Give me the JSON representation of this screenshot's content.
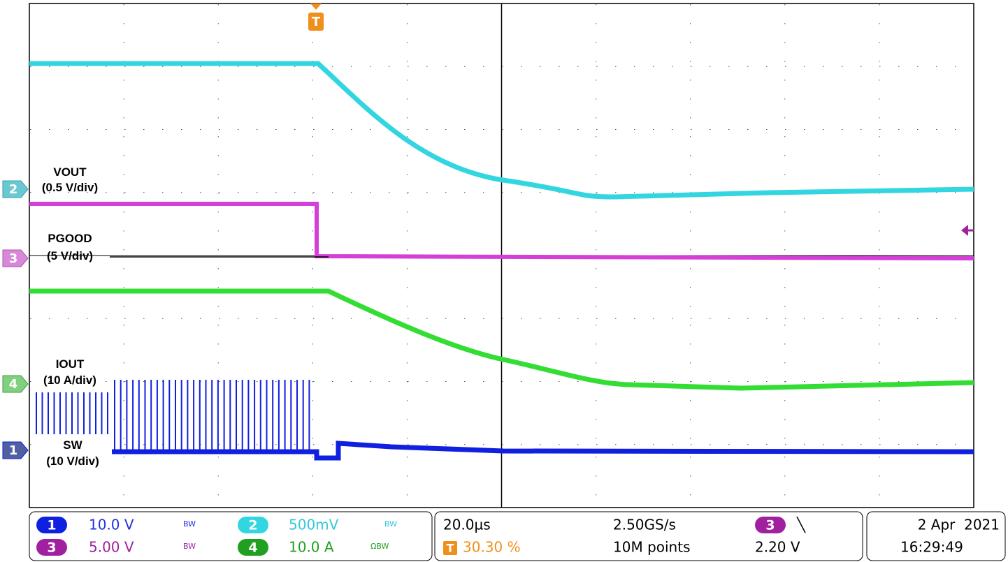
{
  "waveform_labels": [
    {
      "name": "VOUT",
      "scale": "(0.5 V/div)"
    },
    {
      "name": "PGOOD",
      "scale": "(5 V/div)"
    },
    {
      "name": "IOUT",
      "scale": "(10 A/div)"
    },
    {
      "name": "SW",
      "scale": "(10 V/div)"
    }
  ],
  "channel_markers": [
    "2",
    "3",
    "4",
    "1"
  ],
  "trigger_marker": "T",
  "status": {
    "channels": [
      {
        "number": "1",
        "scale": "10.0 V",
        "bw": "BW"
      },
      {
        "number": "2",
        "scale": "500mV",
        "bw": "BW"
      },
      {
        "number": "3",
        "scale": "5.00 V",
        "bw": "BW"
      },
      {
        "number": "4",
        "scale": "10.0 A",
        "bw": "ΩBW"
      }
    ],
    "timebase": "20.0µs",
    "sample_rate": "2.50GS/s",
    "trigger_source": "3",
    "trigger_slope": "╲",
    "trigger_icon": "T",
    "trigger_position": "30.30 %",
    "record_length": "10M points",
    "trigger_level": "2.20 V",
    "date": "2 Apr  2021",
    "time": "16:29:49"
  }
}
